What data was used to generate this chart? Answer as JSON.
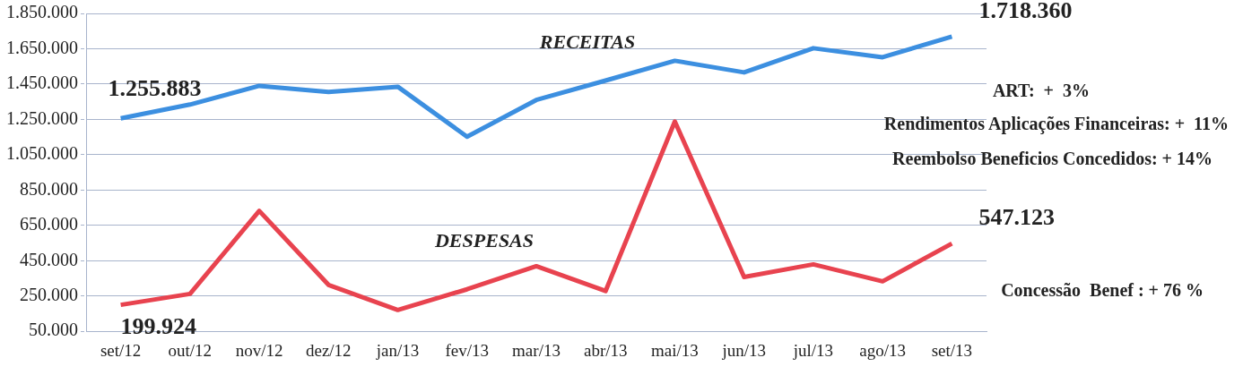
{
  "chart_data": {
    "type": "line",
    "categories": [
      "set/12",
      "out/12",
      "nov/12",
      "dez/12",
      "jan/13",
      "fev/13",
      "mar/13",
      "abr/13",
      "mai/13",
      "jun/13",
      "jul/13",
      "ago/13",
      "set/13"
    ],
    "series": [
      {
        "name": "RECEITAS",
        "color": "#3c8fe0",
        "values": [
          1255883,
          1334000,
          1440000,
          1405000,
          1435000,
          1152000,
          1360000,
          1470000,
          1582000,
          1516000,
          1653000,
          1602000,
          1718360
        ],
        "value_labels": [
          "1.255.883",
          null,
          null,
          null,
          null,
          null,
          null,
          null,
          null,
          null,
          null,
          null,
          "1.718.360"
        ]
      },
      {
        "name": "DESPESAS",
        "color": "#e8434f",
        "values": [
          199924,
          262000,
          732000,
          313000,
          171000,
          288000,
          419000,
          278000,
          1238000,
          358000,
          429000,
          333000,
          547123
        ],
        "value_labels": [
          "199.924",
          null,
          null,
          null,
          null,
          null,
          null,
          null,
          null,
          null,
          null,
          null,
          "547.123"
        ]
      }
    ],
    "ylim": [
      50000,
      1850000
    ],
    "yticks": [
      {
        "value": 50000,
        "label": "50.000"
      },
      {
        "value": 250000,
        "label": "250.000"
      },
      {
        "value": 450000,
        "label": "450.000"
      },
      {
        "value": 650000,
        "label": "650.000"
      },
      {
        "value": 850000,
        "label": "850.000"
      },
      {
        "value": 1050000,
        "label": "1.050.000"
      },
      {
        "value": 1250000,
        "label": "1.250.000"
      },
      {
        "value": 1450000,
        "label": "1.450.000"
      },
      {
        "value": 1650000,
        "label": "1.650.000"
      },
      {
        "value": 1850000,
        "label": "1.850.000"
      }
    ],
    "grid": "y",
    "legend": false,
    "marker": "none",
    "line_style": "solid",
    "annotations": [
      "ART:  +  3%",
      "Rendimentos Aplicações Financeiras: +  11%",
      "Reembolso Beneficios Concedidos: + 14%",
      "Concessão  Benef : + 76 %"
    ]
  }
}
